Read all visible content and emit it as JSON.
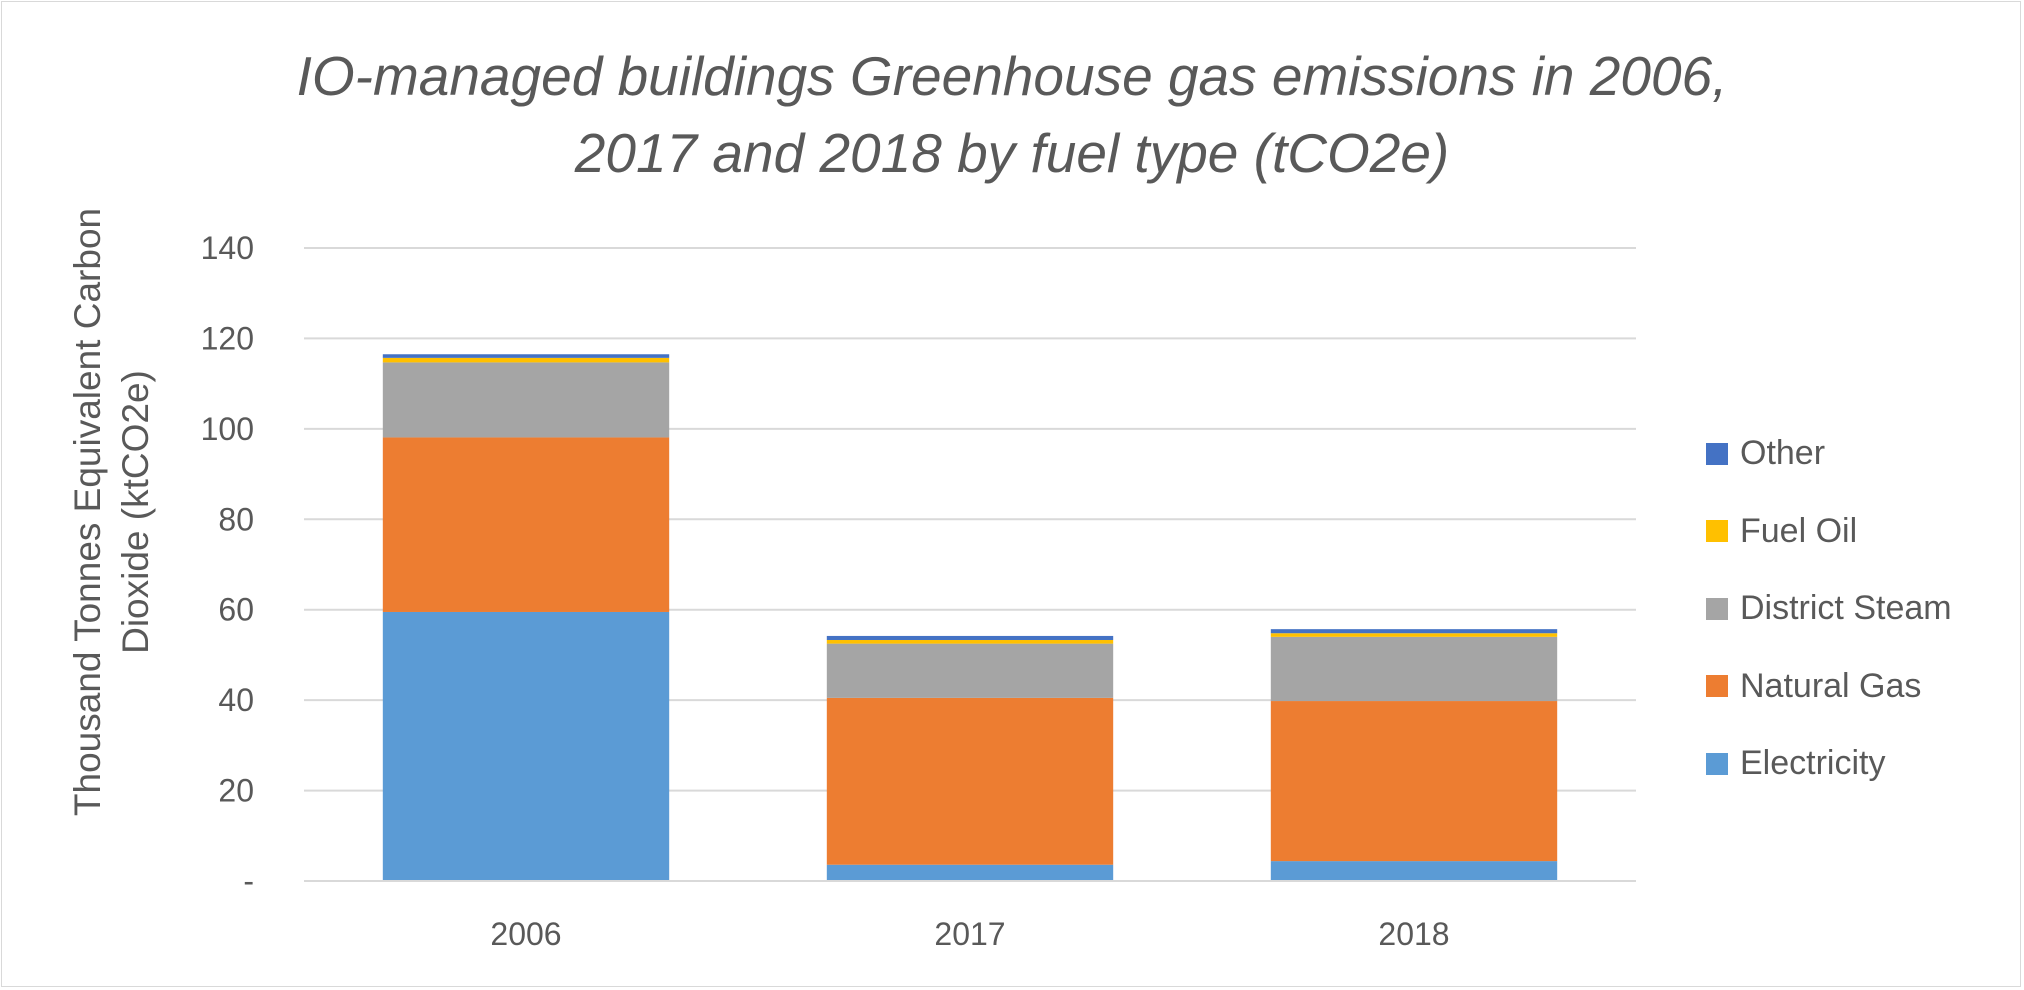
{
  "chart_data": {
    "type": "bar",
    "stacked": true,
    "title_lines": [
      "IO-managed buildings Greenhouse gas emissions in 2006,",
      "2017 and 2018 by fuel type (tCO2e)"
    ],
    "xlabel": "",
    "ylabel": "Thousand Tonnes Equivalent Carbon Dioxide (ktCO2e)",
    "ylim": [
      0,
      140
    ],
    "yticks": [
      {
        "value": 0,
        "label": "-"
      },
      {
        "value": 20,
        "label": "20"
      },
      {
        "value": 40,
        "label": "40"
      },
      {
        "value": 60,
        "label": "60"
      },
      {
        "value": 80,
        "label": "80"
      },
      {
        "value": 100,
        "label": "100"
      },
      {
        "value": 120,
        "label": "120"
      },
      {
        "value": 140,
        "label": "140"
      }
    ],
    "grid": true,
    "legend_position": "right",
    "categories": [
      "2006",
      "2017",
      "2018"
    ],
    "series": [
      {
        "name": "Electricity",
        "color": "#5b9bd5",
        "values": [
          59.5,
          3.6,
          4.4
        ]
      },
      {
        "name": "Natural Gas",
        "color": "#ed7d31",
        "values": [
          38.6,
          36.9,
          35.4
        ]
      },
      {
        "name": "District Steam",
        "color": "#a5a5a5",
        "values": [
          16.6,
          12.0,
          14.2
        ]
      },
      {
        "name": "Fuel Oil",
        "color": "#ffc000",
        "values": [
          1.0,
          0.8,
          0.8
        ]
      },
      {
        "name": "Other",
        "color": "#4472c4",
        "values": [
          0.8,
          0.9,
          0.9
        ]
      }
    ],
    "legend_order": [
      "Other",
      "Fuel Oil",
      "District Steam",
      "Natural Gas",
      "Electricity"
    ]
  }
}
